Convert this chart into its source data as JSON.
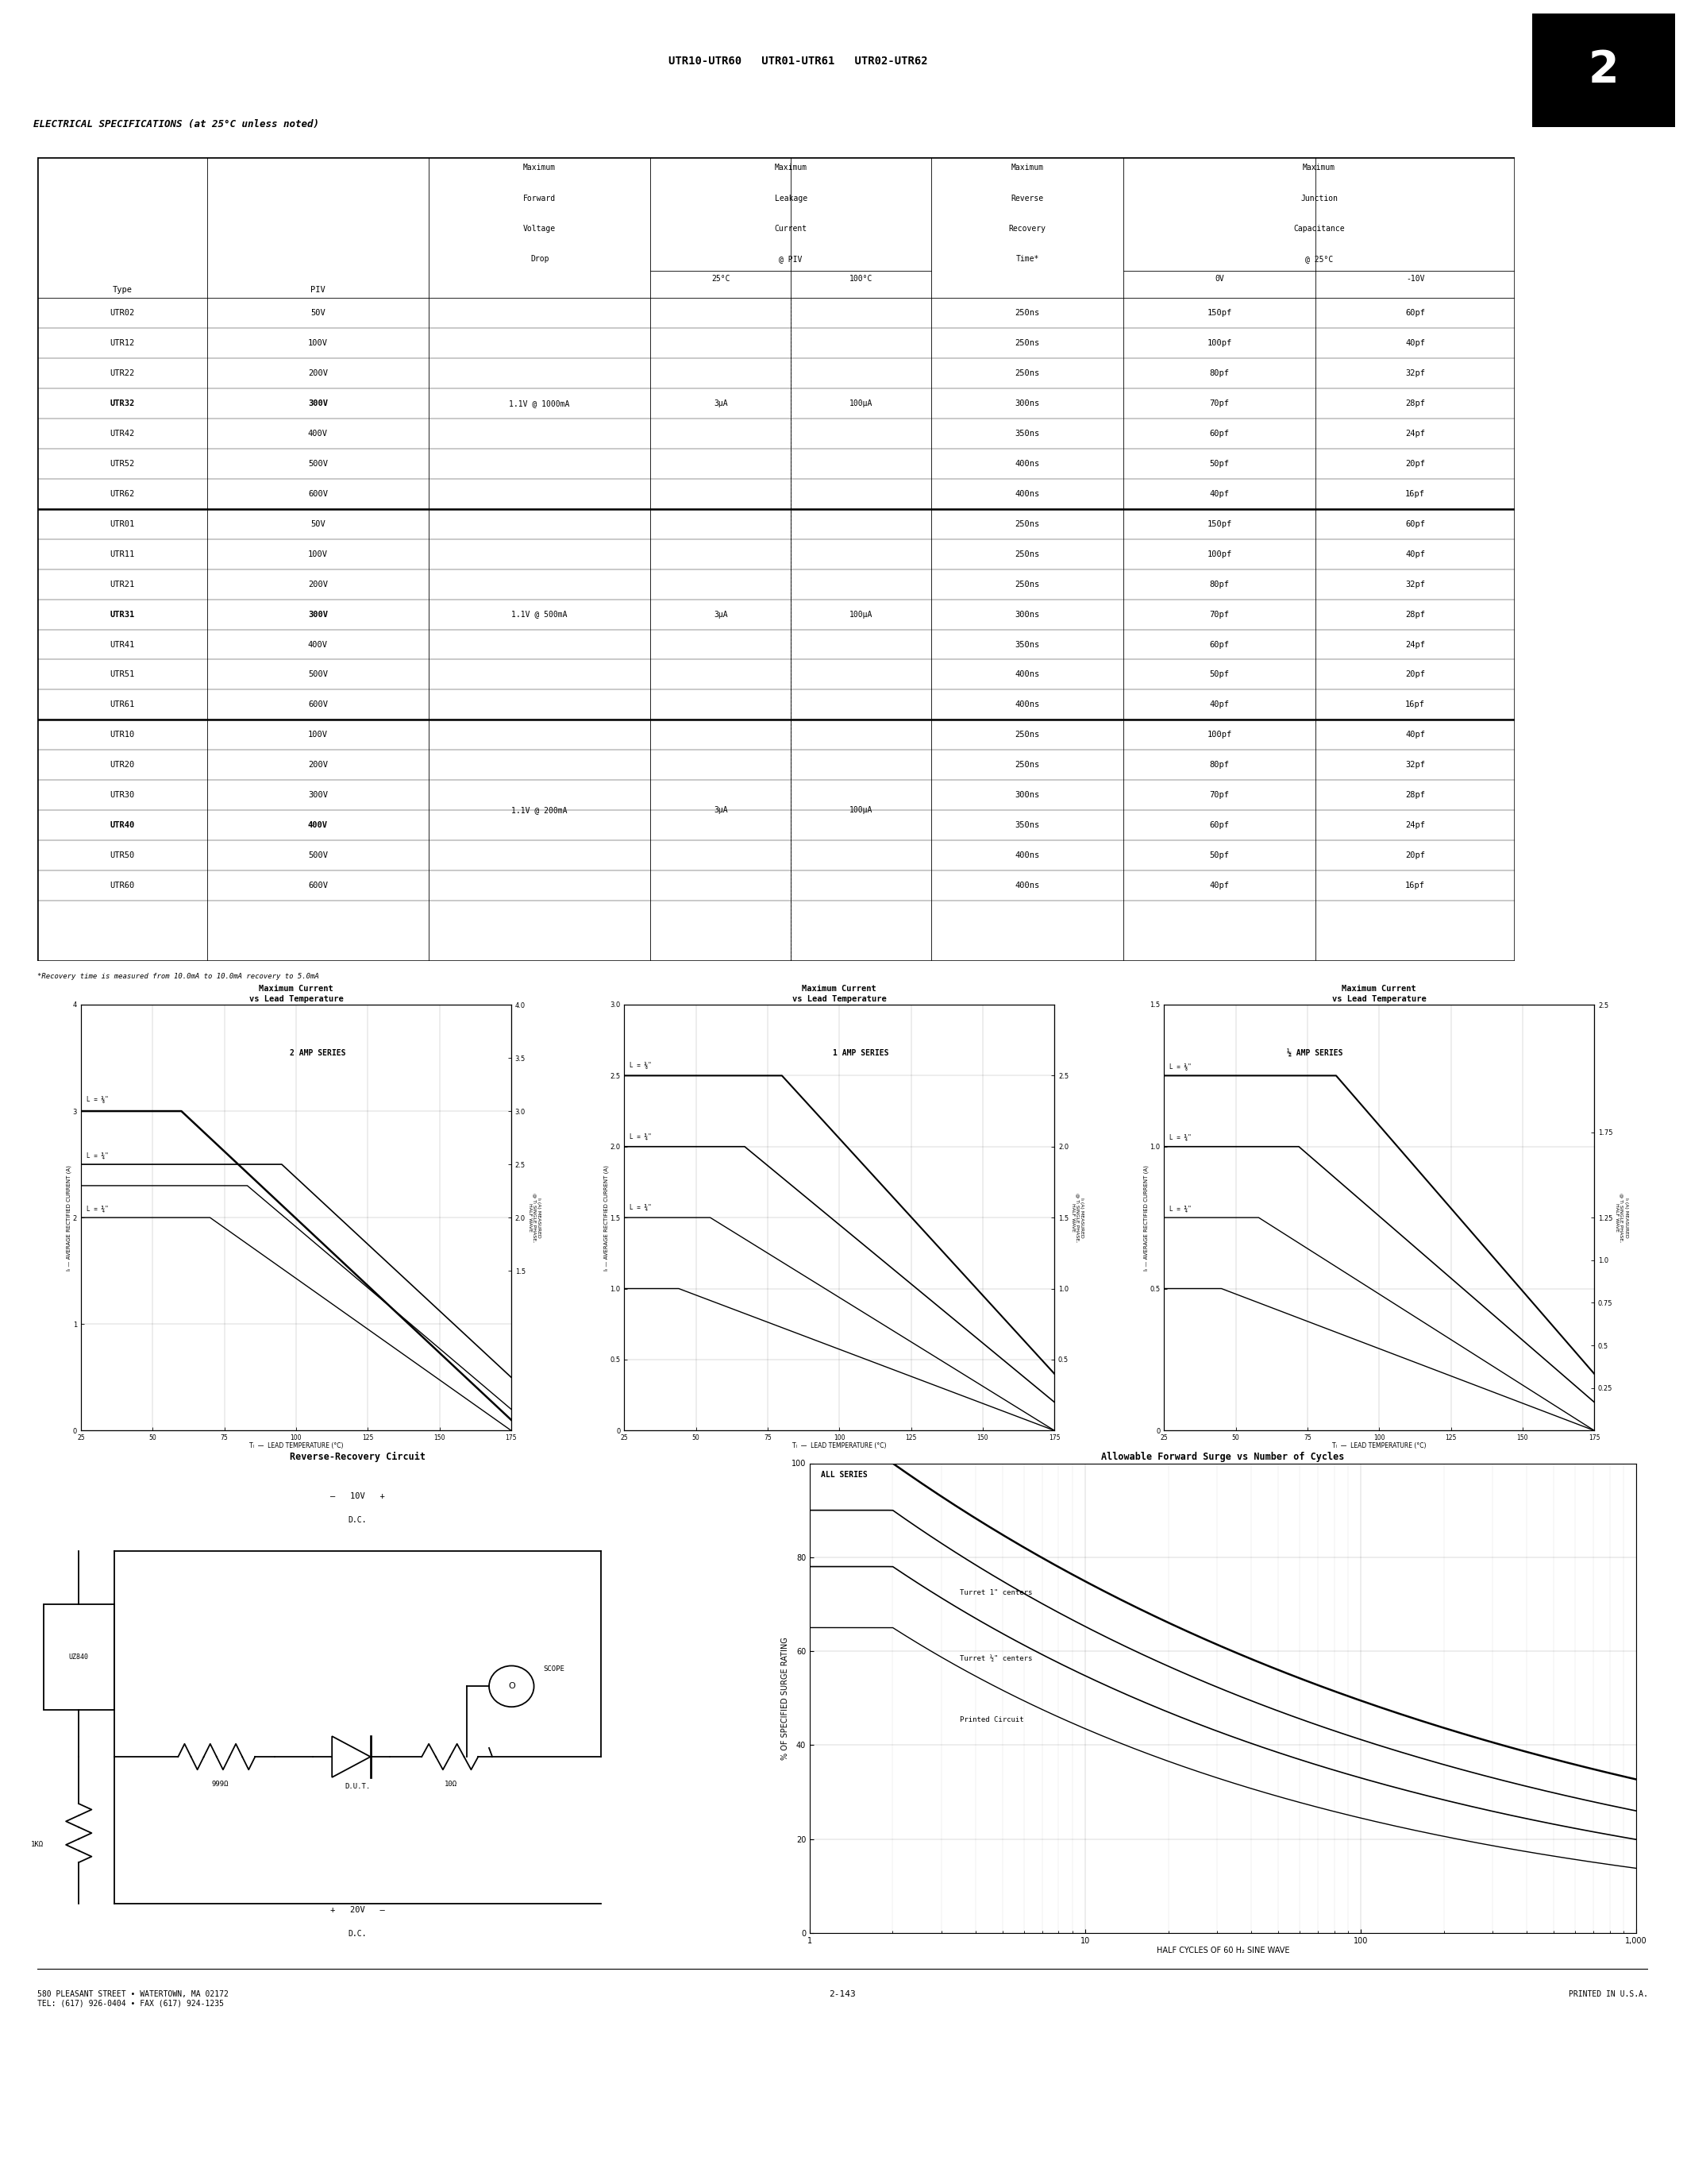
{
  "page_title": "UTR10-UTR60   UTR01-UTR61   UTR02-UTR62",
  "section_label": "2",
  "elec_spec_title": "ELECTRICAL SPECIFICATIONS (at 25°C unless noted)",
  "series1_rows": [
    [
      "UTR02",
      "50V",
      "",
      "",
      "",
      "250ns",
      "150pf",
      "60pf"
    ],
    [
      "UTR12",
      "100V",
      "",
      "",
      "",
      "250ns",
      "100pf",
      "40pf"
    ],
    [
      "UTR22",
      "200V",
      "",
      "",
      "",
      "250ns",
      "80pf",
      "32pf"
    ],
    [
      "UTR32",
      "300V",
      "1.1V @ 1000mA",
      "3μA",
      "100μA",
      "300ns",
      "70pf",
      "28pf"
    ],
    [
      "UTR42",
      "400V",
      "",
      "",
      "",
      "350ns",
      "60pf",
      "24pf"
    ],
    [
      "UTR52",
      "500V",
      "",
      "",
      "",
      "400ns",
      "50pf",
      "20pf"
    ],
    [
      "UTR62",
      "600V",
      "",
      "",
      "",
      "400ns",
      "40pf",
      "16pf"
    ]
  ],
  "series2_rows": [
    [
      "UTR01",
      "50V",
      "",
      "",
      "",
      "250ns",
      "150pf",
      "60pf"
    ],
    [
      "UTR11",
      "100V",
      "",
      "",
      "",
      "250ns",
      "100pf",
      "40pf"
    ],
    [
      "UTR21",
      "200V",
      "",
      "",
      "",
      "250ns",
      "80pf",
      "32pf"
    ],
    [
      "UTR31",
      "300V",
      "1.1V @ 500mA",
      "3μA",
      "100μA",
      "300ns",
      "70pf",
      "28pf"
    ],
    [
      "UTR41",
      "400V",
      "",
      "",
      "",
      "350ns",
      "60pf",
      "24pf"
    ],
    [
      "UTR51",
      "500V",
      "",
      "",
      "",
      "400ns",
      "50pf",
      "20pf"
    ],
    [
      "UTR61",
      "600V",
      "",
      "",
      "",
      "400ns",
      "40pf",
      "16pf"
    ]
  ],
  "series3_rows": [
    [
      "UTR10",
      "100V",
      "",
      "",
      "",
      "250ns",
      "100pf",
      "40pf"
    ],
    [
      "UTR20",
      "200V",
      "",
      "",
      "",
      "250ns",
      "80pf",
      "32pf"
    ],
    [
      "UTR30",
      "300V",
      "",
      "",
      "",
      "300ns",
      "70pf",
      "28pf"
    ],
    [
      "UTR40",
      "400V",
      "1.1V @ 200mA",
      "3μA",
      "100μA",
      "350ns",
      "60pf",
      "24pf"
    ],
    [
      "UTR50",
      "500V",
      "",
      "",
      "",
      "400ns",
      "50pf",
      "20pf"
    ],
    [
      "UTR60",
      "600V",
      "",
      "",
      "",
      "400ns",
      "40pf",
      "16pf"
    ]
  ],
  "footnote": "*Recovery time is measured from 10.0mA to 10.0mA recovery to 5.0mA",
  "chart1_title": "Maximum Current\nvs Lead Temperature",
  "chart2_title": "Maximum Current\nvs Lead Temperature",
  "chart3_title": "Maximum Current\nvs Lead Temperature",
  "chart1_series_label": "2 AMP SERIES",
  "chart2_series_label": "1 AMP SERIES",
  "chart3_series_label": "½ AMP SERIES",
  "footer_address": "580 PLEASANT STREET • WATERTOWN, MA 02172\nTEL: (617) 926-0404 • FAX (617) 924-1235",
  "footer_page": "2-143",
  "footer_right": "PRINTED IN U.S.A.",
  "bg_color": "#ffffff"
}
